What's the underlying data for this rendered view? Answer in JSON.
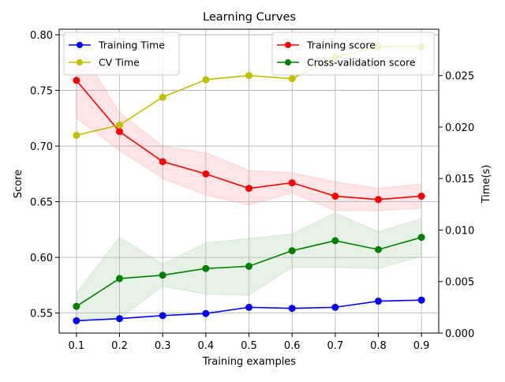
{
  "chart_data": {
    "type": "line",
    "title": "Learning Curves",
    "xlabel": "Training examples",
    "ylabel_left": "Score",
    "ylabel_right": "Time(s)",
    "x": [
      0.1,
      0.2,
      0.3,
      0.4,
      0.5,
      0.6,
      0.7,
      0.8,
      0.9
    ],
    "xlim": [
      0.06,
      0.94
    ],
    "ylim_left": [
      0.532,
      0.805
    ],
    "ylim_right": [
      0.0,
      0.0295
    ],
    "grid": true,
    "x_ticks": [
      "0.1",
      "0.2",
      "0.3",
      "0.4",
      "0.5",
      "0.6",
      "0.7",
      "0.8",
      "0.9"
    ],
    "y_left_ticks": [
      "0.55",
      "0.60",
      "0.65",
      "0.70",
      "0.75",
      "0.80"
    ],
    "y_right_ticks": [
      "0.000",
      "0.005",
      "0.010",
      "0.015",
      "0.020",
      "0.025"
    ],
    "score_series": [
      {
        "name": "Training score",
        "color": "#ff0000",
        "band_color": "#ff0000",
        "values": [
          0.759,
          0.713,
          0.686,
          0.675,
          0.662,
          0.667,
          0.655,
          0.652,
          0.655
        ],
        "lower": [
          0.725,
          0.696,
          0.671,
          0.656,
          0.647,
          0.658,
          0.642,
          0.642,
          0.644
        ],
        "upper": [
          0.793,
          0.73,
          0.7,
          0.694,
          0.678,
          0.676,
          0.668,
          0.662,
          0.666
        ]
      },
      {
        "name": "Cross-validation score",
        "color": "#008000",
        "band_color": "#008000",
        "values": [
          0.556,
          0.581,
          0.584,
          0.59,
          0.592,
          0.606,
          0.615,
          0.607,
          0.618
        ],
        "lower": [
          0.545,
          0.545,
          0.574,
          0.567,
          0.566,
          0.591,
          0.591,
          0.59,
          0.601
        ],
        "upper": [
          0.568,
          0.618,
          0.594,
          0.613,
          0.617,
          0.621,
          0.64,
          0.623,
          0.635
        ]
      }
    ],
    "time_series": [
      {
        "name": "Training Time",
        "color": "#0000ff",
        "values": [
          0.0012,
          0.0014,
          0.0017,
          0.0019,
          0.0025,
          0.0024,
          0.0025,
          0.0031,
          0.0032
        ]
      },
      {
        "name": "CV Time",
        "color": "#bfbf00",
        "values": [
          0.0192,
          0.0202,
          0.0229,
          0.0246,
          0.025,
          0.0247,
          0.0268,
          0.0278,
          0.0278
        ]
      }
    ],
    "legend_left": {
      "placement": "top-left",
      "entries": [
        "Training Time",
        "CV Time"
      ]
    },
    "legend_right": {
      "placement": "top-right",
      "entries": [
        "Training score",
        "Cross-validation score"
      ]
    }
  }
}
